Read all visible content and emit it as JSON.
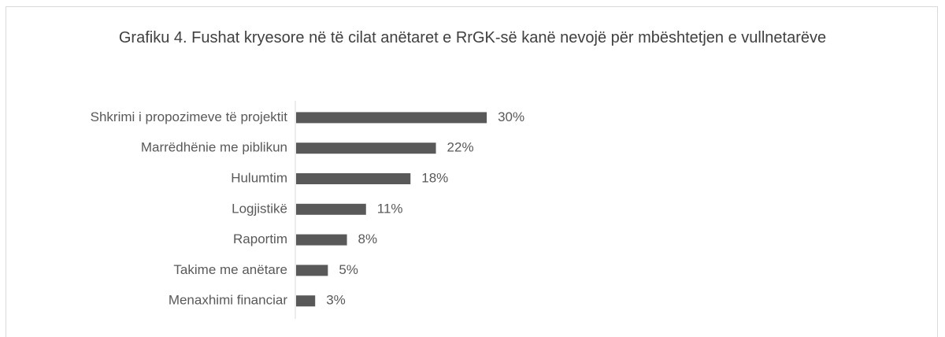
{
  "chart_data": {
    "type": "bar",
    "orientation": "horizontal",
    "title": "Grafiku 4. Fushat kryesore në të cilat anëtaret e RrGK-së kanë nevojë për mbështetjen e vullnetarëve",
    "categories": [
      "Shkrimi i propozimeve të projektit",
      "Marrëdhënie me piblikun",
      "Hulumtim",
      "Logjistikë",
      "Raportim",
      "Takime me anëtare",
      "Menaxhimi financiar"
    ],
    "values": [
      30,
      22,
      18,
      11,
      8,
      5,
      3
    ],
    "value_labels": [
      "30%",
      "22%",
      "18%",
      "11%",
      "8%",
      "5%",
      "3%"
    ],
    "color": "#595959"
  }
}
